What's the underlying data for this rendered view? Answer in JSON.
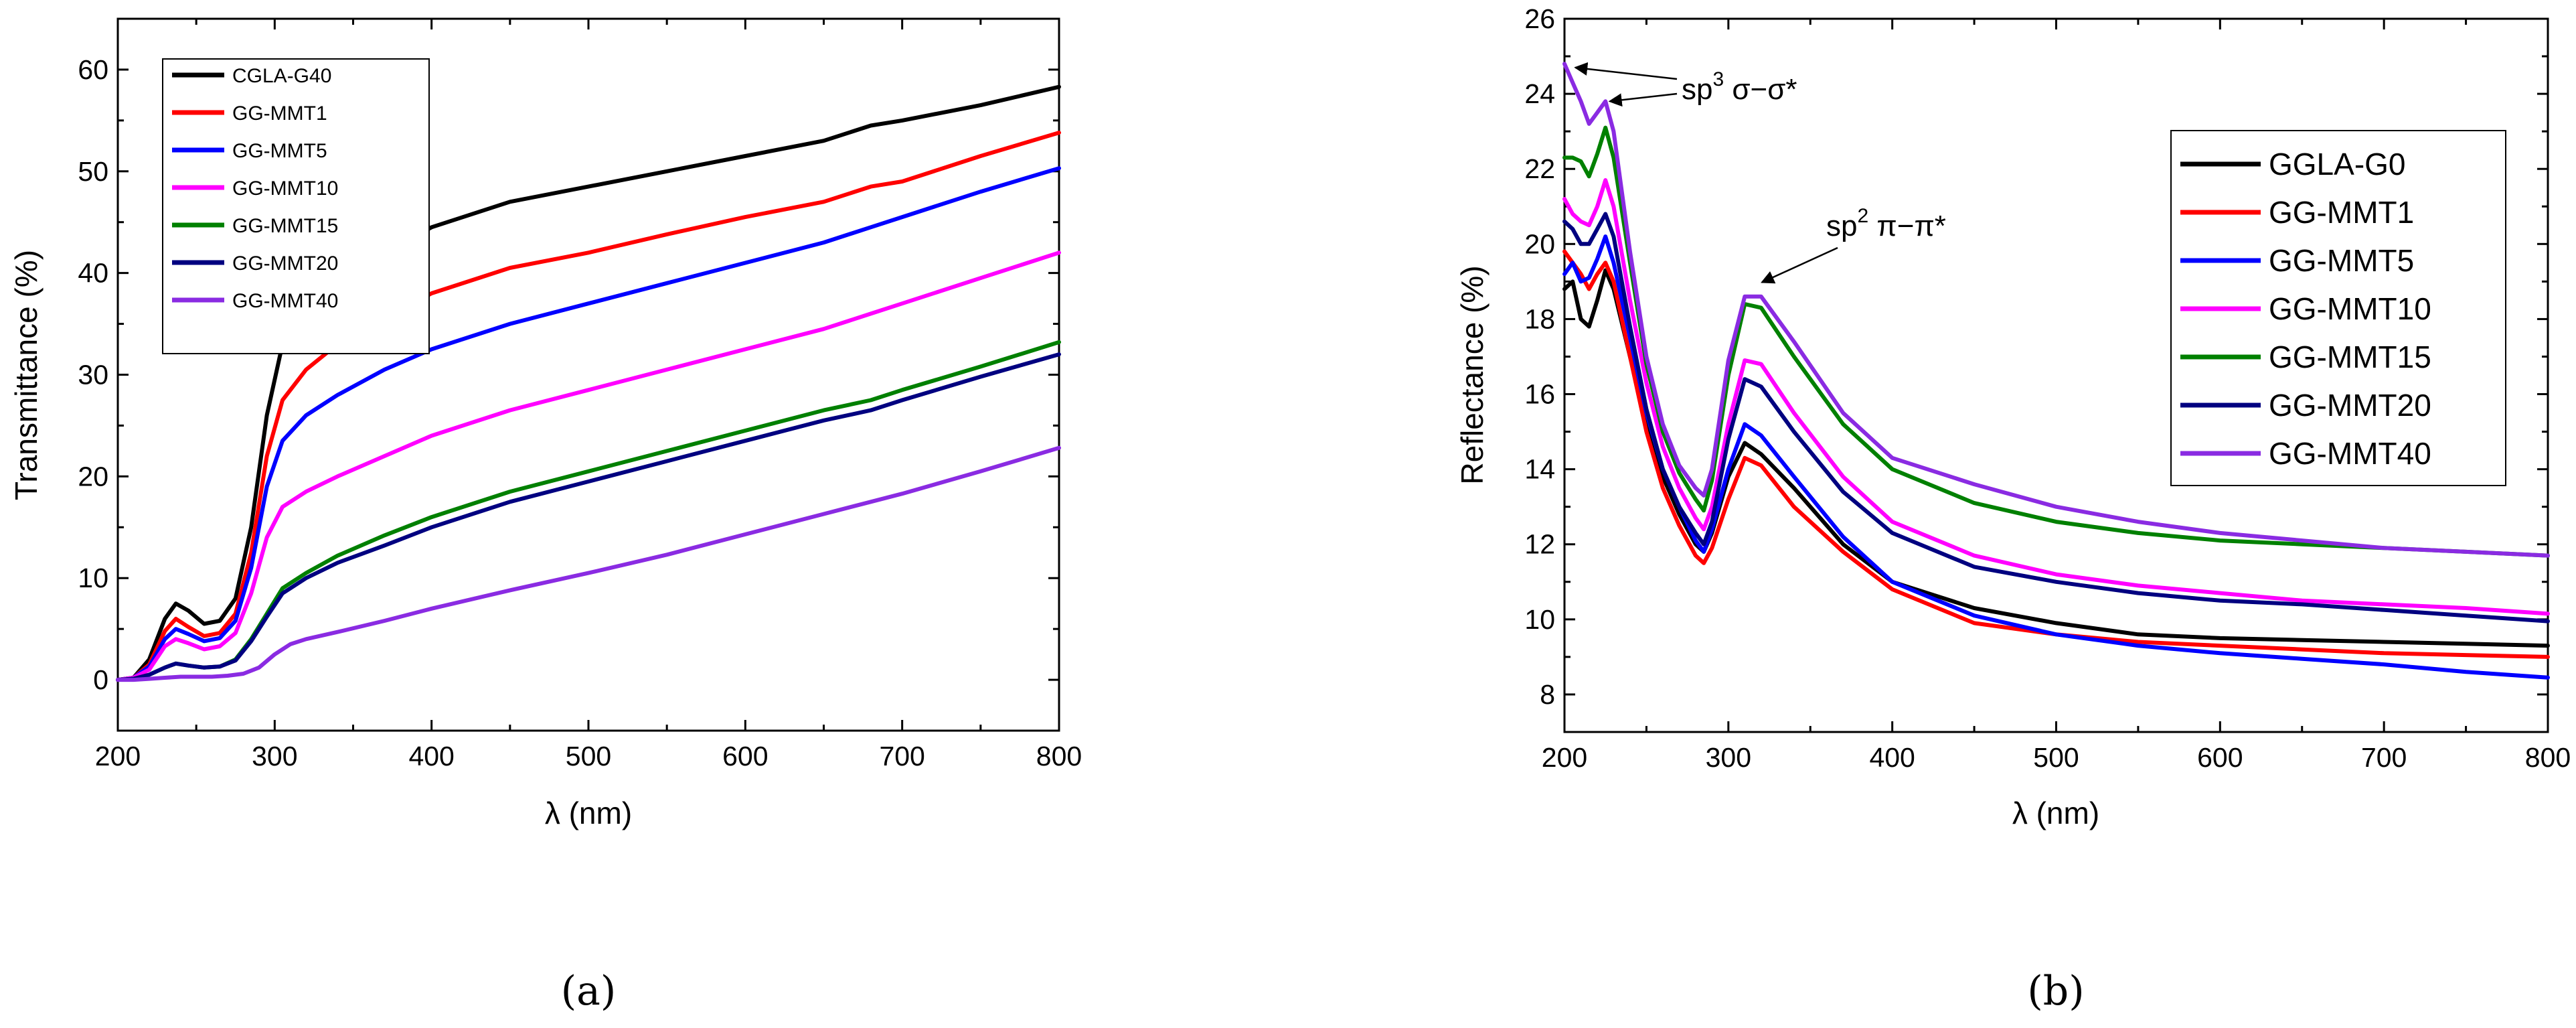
{
  "chart_data": [
    {
      "panel_label": "(a)",
      "type": "line",
      "title": "",
      "xlabel": "λ (nm)",
      "ylabel": "Transmittance (%)",
      "xlim": [
        200,
        800
      ],
      "ylim": [
        -5,
        65
      ],
      "xticks": [
        200,
        300,
        400,
        500,
        600,
        700,
        800
      ],
      "yticks": [
        0,
        10,
        20,
        30,
        40,
        50,
        60
      ],
      "grid": false,
      "legend_position": "top-left",
      "series": [
        {
          "name": "CGLA-G40",
          "color": "#000000",
          "x": [
            200,
            210,
            220,
            230,
            237,
            245,
            255,
            265,
            275,
            285,
            295,
            305,
            320,
            340,
            370,
            400,
            450,
            500,
            550,
            600,
            650,
            680,
            700,
            750,
            800
          ],
          "y": [
            0,
            0.2,
            2,
            6,
            7.5,
            6.8,
            5.5,
            5.8,
            8,
            15,
            26,
            33,
            36,
            39,
            42,
            44.5,
            47,
            48.5,
            50,
            51.5,
            53,
            54.5,
            55,
            56.5,
            58.3
          ]
        },
        {
          "name": "GG-MMT1",
          "color": "#ff0000",
          "x": [
            200,
            210,
            220,
            230,
            237,
            245,
            255,
            265,
            275,
            285,
            295,
            305,
            320,
            340,
            370,
            400,
            450,
            500,
            550,
            600,
            650,
            680,
            700,
            750,
            800
          ],
          "y": [
            0,
            0.2,
            1.5,
            4.8,
            6,
            5.2,
            4.3,
            4.6,
            6.5,
            12.5,
            22,
            27.5,
            30.5,
            33,
            35.5,
            38,
            40.5,
            42,
            43.8,
            45.5,
            47,
            48.5,
            49,
            51.5,
            53.8
          ]
        },
        {
          "name": "GG-MMT5",
          "color": "#0000ff",
          "x": [
            200,
            210,
            220,
            230,
            237,
            245,
            255,
            265,
            275,
            285,
            295,
            305,
            320,
            340,
            370,
            400,
            450,
            500,
            550,
            600,
            650,
            680,
            700,
            750,
            800
          ],
          "y": [
            0,
            0.2,
            1.3,
            4,
            5,
            4.5,
            3.8,
            4.1,
            5.8,
            11,
            19,
            23.5,
            26,
            28,
            30.5,
            32.5,
            35,
            37,
            39,
            41,
            43,
            44.5,
            45.5,
            48,
            50.3
          ]
        },
        {
          "name": "GG-MMT10",
          "color": "#ff00ff",
          "x": [
            200,
            210,
            220,
            230,
            237,
            245,
            255,
            265,
            275,
            285,
            295,
            305,
            320,
            340,
            370,
            400,
            450,
            500,
            550,
            600,
            650,
            680,
            700,
            750,
            800
          ],
          "y": [
            0,
            0.2,
            1,
            3.3,
            4,
            3.6,
            3,
            3.3,
            4.6,
            8.5,
            14,
            17,
            18.5,
            20,
            22,
            24,
            26.5,
            28.5,
            30.5,
            32.5,
            34.5,
            36,
            37,
            39.5,
            42
          ]
        },
        {
          "name": "GG-MMT15",
          "color": "#008000",
          "x": [
            200,
            210,
            220,
            230,
            237,
            245,
            255,
            265,
            275,
            285,
            295,
            305,
            320,
            340,
            370,
            400,
            450,
            500,
            550,
            600,
            650,
            680,
            700,
            750,
            800
          ],
          "y": [
            0,
            0.1,
            0.5,
            1.2,
            1.6,
            1.4,
            1.2,
            1.3,
            2,
            4,
            6.5,
            9,
            10.5,
            12.2,
            14.2,
            16,
            18.5,
            20.5,
            22.5,
            24.5,
            26.5,
            27.5,
            28.5,
            30.8,
            33.2
          ]
        },
        {
          "name": "GG-MMT20",
          "color": "#000080",
          "x": [
            200,
            210,
            220,
            230,
            237,
            245,
            255,
            265,
            275,
            285,
            295,
            305,
            320,
            340,
            370,
            400,
            450,
            500,
            550,
            600,
            650,
            680,
            700,
            750,
            800
          ],
          "y": [
            0,
            0.1,
            0.5,
            1.2,
            1.6,
            1.4,
            1.2,
            1.3,
            1.9,
            3.8,
            6.2,
            8.5,
            10,
            11.5,
            13.2,
            15,
            17.5,
            19.5,
            21.5,
            23.5,
            25.5,
            26.5,
            27.5,
            29.8,
            32
          ]
        },
        {
          "name": "GG-MMT40",
          "color": "#8a2be2",
          "x": [
            200,
            210,
            220,
            230,
            240,
            250,
            260,
            270,
            280,
            290,
            300,
            310,
            320,
            340,
            370,
            400,
            450,
            500,
            550,
            600,
            650,
            680,
            700,
            750,
            800
          ],
          "y": [
            0,
            0,
            0.1,
            0.2,
            0.3,
            0.3,
            0.3,
            0.4,
            0.6,
            1.2,
            2.5,
            3.5,
            4,
            4.7,
            5.8,
            7,
            8.8,
            10.5,
            12.3,
            14.3,
            16.3,
            17.5,
            18.3,
            20.5,
            22.8
          ]
        }
      ]
    },
    {
      "panel_label": "(b)",
      "type": "line",
      "title": "",
      "xlabel": "λ (nm)",
      "ylabel": "Reflectance (%)",
      "xlim": [
        200,
        800
      ],
      "ylim": [
        7,
        26
      ],
      "xticks": [
        200,
        300,
        400,
        500,
        600,
        700,
        800
      ],
      "yticks": [
        8,
        10,
        12,
        14,
        16,
        18,
        20,
        22,
        24,
        26
      ],
      "grid": false,
      "legend_position": "top-right",
      "annotations": [
        {
          "text_base": "sp",
          "text_sup": "3",
          "text_rest": " σ−σ*",
          "points_to": [
            [
              205,
              24.7
            ],
            [
              226,
              23.8
            ]
          ]
        },
        {
          "text_base": "sp",
          "text_sup": "2",
          "text_rest": " π−π*",
          "points_to": [
            [
              318,
              18.8
            ]
          ]
        }
      ],
      "series": [
        {
          "name": "GGLA-G0",
          "color": "#000000",
          "x": [
            200,
            205,
            210,
            215,
            220,
            225,
            230,
            240,
            250,
            260,
            270,
            280,
            285,
            290,
            300,
            310,
            320,
            340,
            370,
            400,
            450,
            500,
            550,
            600,
            650,
            700,
            750,
            800
          ],
          "y": [
            18.8,
            19,
            18,
            17.8,
            18.5,
            19.3,
            18.8,
            17,
            15.2,
            13.8,
            12.8,
            12,
            11.8,
            12.3,
            13.8,
            14.7,
            14.4,
            13.5,
            12,
            11,
            10.3,
            9.9,
            9.6,
            9.5,
            9.45,
            9.4,
            9.35,
            9.3
          ]
        },
        {
          "name": "GG-MMT1",
          "color": "#ff0000",
          "x": [
            200,
            205,
            210,
            215,
            220,
            225,
            230,
            240,
            250,
            260,
            270,
            280,
            285,
            290,
            300,
            310,
            320,
            340,
            370,
            400,
            450,
            500,
            550,
            600,
            650,
            700,
            750,
            800
          ],
          "y": [
            19.8,
            19.5,
            19.2,
            18.8,
            19.2,
            19.5,
            19,
            17,
            15,
            13.5,
            12.5,
            11.7,
            11.5,
            11.9,
            13.2,
            14.3,
            14.1,
            13,
            11.8,
            10.8,
            9.9,
            9.6,
            9.4,
            9.3,
            9.2,
            9.1,
            9.05,
            9
          ]
        },
        {
          "name": "GG-MMT5",
          "color": "#0000ff",
          "x": [
            200,
            205,
            210,
            215,
            220,
            225,
            230,
            240,
            250,
            260,
            270,
            280,
            285,
            290,
            300,
            310,
            320,
            340,
            370,
            400,
            450,
            500,
            550,
            600,
            650,
            700,
            750,
            800
          ],
          "y": [
            19.2,
            19.5,
            19,
            19.1,
            19.6,
            20.2,
            19.5,
            17.5,
            15.5,
            14,
            13,
            12.1,
            11.8,
            12.4,
            14,
            15.2,
            14.9,
            13.8,
            12.2,
            11,
            10.1,
            9.6,
            9.3,
            9.1,
            8.95,
            8.8,
            8.6,
            8.45
          ]
        },
        {
          "name": "GG-MMT10",
          "color": "#ff00ff",
          "x": [
            200,
            205,
            210,
            215,
            220,
            225,
            230,
            240,
            250,
            260,
            270,
            280,
            285,
            290,
            300,
            310,
            320,
            340,
            370,
            400,
            450,
            500,
            550,
            600,
            650,
            700,
            750,
            800
          ],
          "y": [
            21.2,
            20.8,
            20.6,
            20.5,
            21,
            21.7,
            21,
            18.5,
            16.3,
            14.6,
            13.5,
            12.7,
            12.4,
            13,
            15.2,
            16.9,
            16.8,
            15.5,
            13.8,
            12.6,
            11.7,
            11.2,
            10.9,
            10.7,
            10.5,
            10.4,
            10.3,
            10.15
          ]
        },
        {
          "name": "GG-MMT15",
          "color": "#008000",
          "x": [
            200,
            205,
            210,
            215,
            220,
            225,
            230,
            240,
            250,
            260,
            270,
            280,
            285,
            290,
            300,
            310,
            320,
            340,
            370,
            400,
            450,
            500,
            550,
            600,
            650,
            700,
            750,
            800
          ],
          "y": [
            22.3,
            22.3,
            22.2,
            21.8,
            22.4,
            23.1,
            22.3,
            19.5,
            16.8,
            15,
            13.9,
            13.2,
            12.9,
            13.7,
            16.5,
            18.4,
            18.3,
            17,
            15.2,
            14,
            13.1,
            12.6,
            12.3,
            12.1,
            12,
            11.9,
            11.8,
            11.7
          ]
        },
        {
          "name": "GG-MMT20",
          "color": "#000080",
          "x": [
            200,
            205,
            210,
            215,
            220,
            225,
            230,
            240,
            250,
            260,
            270,
            280,
            285,
            290,
            300,
            310,
            320,
            340,
            370,
            400,
            450,
            500,
            550,
            600,
            650,
            700,
            750,
            800
          ],
          "y": [
            20.6,
            20.4,
            20,
            20,
            20.4,
            20.8,
            20.2,
            17.8,
            15.6,
            14,
            13,
            12.3,
            12,
            12.6,
            14.8,
            16.4,
            16.2,
            15,
            13.4,
            12.3,
            11.4,
            11,
            10.7,
            10.5,
            10.4,
            10.25,
            10.1,
            9.95
          ]
        },
        {
          "name": "GG-MMT40",
          "color": "#8a2be2",
          "x": [
            200,
            205,
            210,
            215,
            220,
            225,
            230,
            240,
            250,
            260,
            270,
            280,
            285,
            290,
            300,
            310,
            320,
            340,
            370,
            400,
            450,
            500,
            550,
            600,
            650,
            700,
            750,
            800
          ],
          "y": [
            24.8,
            24.3,
            23.8,
            23.2,
            23.5,
            23.8,
            23,
            19.8,
            17,
            15.2,
            14.1,
            13.5,
            13.3,
            14,
            16.9,
            18.6,
            18.6,
            17.4,
            15.5,
            14.3,
            13.6,
            13,
            12.6,
            12.3,
            12.1,
            11.9,
            11.8,
            11.7
          ]
        }
      ]
    }
  ]
}
